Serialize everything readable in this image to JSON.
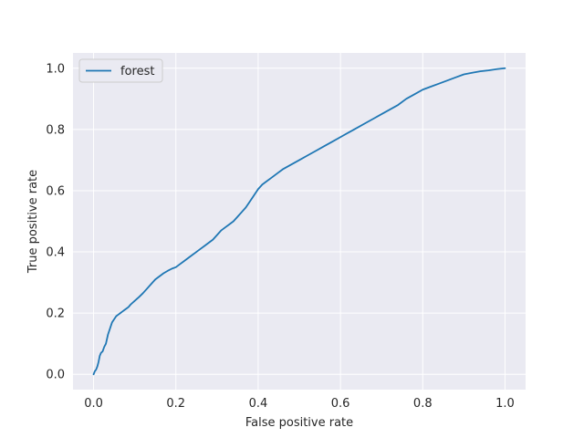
{
  "chart_data": {
    "type": "line",
    "title": "",
    "xlabel": "False positive rate",
    "ylabel": "True positive rate",
    "xlim": [
      -0.05,
      1.05
    ],
    "ylim": [
      -0.05,
      1.05
    ],
    "xticks": [
      0.0,
      0.2,
      0.4,
      0.6,
      0.8,
      1.0
    ],
    "yticks": [
      0.0,
      0.2,
      0.4,
      0.6,
      0.8,
      1.0
    ],
    "xtick_labels": [
      "0.0",
      "0.2",
      "0.4",
      "0.6",
      "0.8",
      "1.0"
    ],
    "ytick_labels": [
      "0.0",
      "0.2",
      "0.4",
      "0.6",
      "0.8",
      "1.0"
    ],
    "grid": true,
    "background_color": "#eaeaf2",
    "grid_color": "#ffffff",
    "legend": {
      "placement": "top-left",
      "entries": [
        "forest"
      ]
    },
    "series": [
      {
        "name": "forest",
        "color": "#1f77b4",
        "x": [
          0.0,
          0.003,
          0.006,
          0.009,
          0.012,
          0.015,
          0.018,
          0.022,
          0.026,
          0.03,
          0.035,
          0.04,
          0.045,
          0.05,
          0.055,
          0.06,
          0.065,
          0.07,
          0.075,
          0.08,
          0.085,
          0.09,
          0.1,
          0.11,
          0.12,
          0.13,
          0.14,
          0.15,
          0.16,
          0.17,
          0.18,
          0.19,
          0.2,
          0.21,
          0.22,
          0.23,
          0.24,
          0.25,
          0.26,
          0.27,
          0.28,
          0.29,
          0.3,
          0.31,
          0.32,
          0.33,
          0.34,
          0.35,
          0.36,
          0.37,
          0.38,
          0.39,
          0.4,
          0.41,
          0.42,
          0.43,
          0.44,
          0.45,
          0.46,
          0.48,
          0.5,
          0.52,
          0.54,
          0.56,
          0.58,
          0.6,
          0.62,
          0.64,
          0.66,
          0.68,
          0.7,
          0.72,
          0.74,
          0.76,
          0.78,
          0.8,
          0.82,
          0.84,
          0.86,
          0.88,
          0.9,
          0.92,
          0.94,
          0.96,
          0.98,
          1.0
        ],
        "y": [
          0.0,
          0.01,
          0.015,
          0.025,
          0.04,
          0.06,
          0.07,
          0.075,
          0.09,
          0.1,
          0.13,
          0.15,
          0.17,
          0.18,
          0.19,
          0.195,
          0.2,
          0.205,
          0.21,
          0.215,
          0.22,
          0.228,
          0.24,
          0.252,
          0.265,
          0.28,
          0.295,
          0.31,
          0.32,
          0.33,
          0.338,
          0.345,
          0.35,
          0.36,
          0.37,
          0.38,
          0.39,
          0.4,
          0.41,
          0.42,
          0.43,
          0.44,
          0.455,
          0.47,
          0.48,
          0.49,
          0.5,
          0.515,
          0.53,
          0.545,
          0.565,
          0.585,
          0.605,
          0.62,
          0.63,
          0.64,
          0.65,
          0.66,
          0.67,
          0.685,
          0.7,
          0.715,
          0.73,
          0.745,
          0.76,
          0.775,
          0.79,
          0.805,
          0.82,
          0.835,
          0.85,
          0.865,
          0.88,
          0.9,
          0.915,
          0.93,
          0.94,
          0.95,
          0.96,
          0.97,
          0.98,
          0.985,
          0.99,
          0.993,
          0.997,
          1.0
        ]
      }
    ]
  }
}
